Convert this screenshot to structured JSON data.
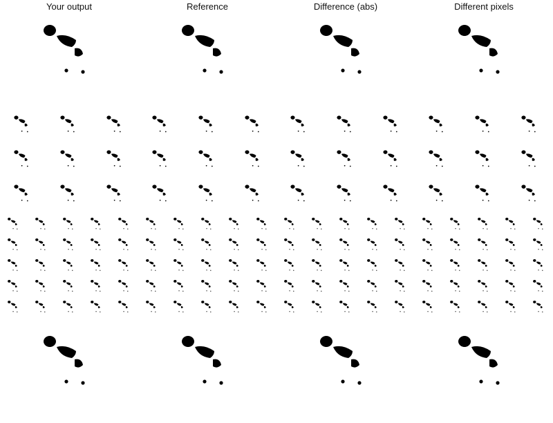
{
  "columns": [
    {
      "title": "Your output",
      "variant": "gray"
    },
    {
      "title": "Reference",
      "variant": "gray"
    },
    {
      "title": "Difference (abs)",
      "variant": "faint"
    },
    {
      "title": "Different pixels",
      "variant": "red"
    }
  ],
  "colors": {
    "background": "#ffffff",
    "skeleton_dark": "#2b2b2b",
    "skeleton_mid": "#6e6e6e",
    "skeleton_light": "#a8a8a8",
    "difference": "#ececec",
    "diff_pixels": "#e0302a"
  },
  "rows": [
    {
      "kind": "single",
      "pose": "run"
    },
    {
      "kind": "grid",
      "grid_rows": 3,
      "grid_cols": 3
    },
    {
      "kind": "grid",
      "grid_rows": 5,
      "grid_cols": 5
    },
    {
      "kind": "single",
      "pose": "crouch"
    }
  ],
  "icons": {
    "figure": "skeleton-figure-icon"
  }
}
